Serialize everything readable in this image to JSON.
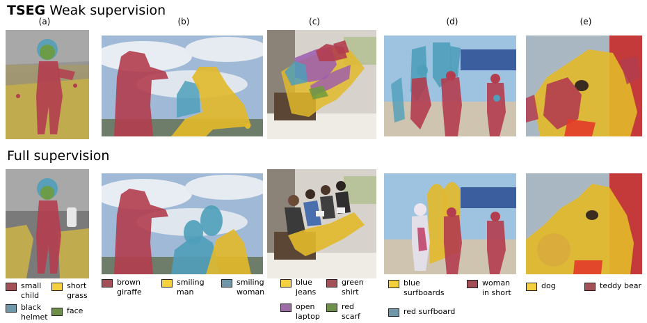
{
  "figure": {
    "weak_title": {
      "bold": "TSEG",
      "rest": "Weak supervision"
    },
    "full_title": "Full supervision",
    "columns": [
      "(a)",
      "(b)",
      "(c)",
      "(d)",
      "(e)"
    ]
  },
  "colors": {
    "red": "#b33d4f",
    "yellow": "#e2b92a",
    "blue": "#4f9fba",
    "green": "#6f9b3d",
    "purple": "#9b5bb0",
    "red_swatch": "#a24f58",
    "yellow_swatch": "#f4d03f",
    "blue_swatch": "#6f97a8",
    "green_swatch": "#6e8f4a",
    "purple_swatch": "#9c6ba8"
  },
  "legends": {
    "a": [
      {
        "text": "small\nchild",
        "color": "red_swatch"
      },
      {
        "text": "short\ngrass",
        "color": "yellow_swatch"
      },
      {
        "text": "black\nhelmet",
        "color": "blue_swatch"
      },
      {
        "text": "face",
        "color": "green_swatch"
      }
    ],
    "b": [
      {
        "text": "brown\ngiraffe",
        "color": "red_swatch"
      },
      {
        "text": "smiling\nman",
        "color": "yellow_swatch"
      },
      {
        "text": "smiling\nwoman",
        "color": "blue_swatch"
      }
    ],
    "c": [
      {
        "text": "blue\njeans",
        "color": "yellow_swatch"
      },
      {
        "text": "green\nshirt",
        "color": "red_swatch"
      },
      {
        "text": "open\nlaptop",
        "color": "purple_swatch"
      },
      {
        "text": "red\nscarf",
        "color": "green_swatch"
      }
    ],
    "d": [
      {
        "text": "blue\nsurfboards",
        "color": "yellow_swatch"
      },
      {
        "text": "woman\nin short",
        "color": "red_swatch"
      },
      {
        "text": "red surfboard",
        "color": "blue_swatch"
      }
    ],
    "e": [
      {
        "text": "dog",
        "color": "yellow_swatch"
      },
      {
        "text": "teddy bear",
        "color": "red_swatch"
      }
    ]
  }
}
